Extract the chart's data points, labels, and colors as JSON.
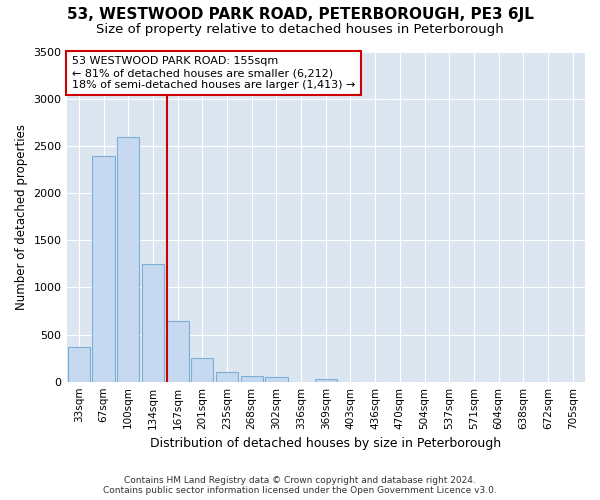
{
  "title_line1": "53, WESTWOOD PARK ROAD, PETERBOROUGH, PE3 6JL",
  "title_line2": "Size of property relative to detached houses in Peterborough",
  "xlabel": "Distribution of detached houses by size in Peterborough",
  "ylabel": "Number of detached properties",
  "bar_labels": [
    "33sqm",
    "67sqm",
    "100sqm",
    "134sqm",
    "167sqm",
    "201sqm",
    "235sqm",
    "268sqm",
    "302sqm",
    "336sqm",
    "369sqm",
    "403sqm",
    "436sqm",
    "470sqm",
    "504sqm",
    "537sqm",
    "571sqm",
    "604sqm",
    "638sqm",
    "672sqm",
    "705sqm"
  ],
  "bar_values": [
    370,
    2390,
    2590,
    1250,
    640,
    255,
    105,
    60,
    45,
    0,
    30,
    0,
    0,
    0,
    0,
    0,
    0,
    0,
    0,
    0,
    0
  ],
  "bar_color": "#c6d9f0",
  "bar_edge_color": "#7bafd4",
  "vline_color": "#cc0000",
  "annotation_text": "53 WESTWOOD PARK ROAD: 155sqm\n← 81% of detached houses are smaller (6,212)\n18% of semi-detached houses are larger (1,413) →",
  "annotation_box_color": "#ffffff",
  "annotation_box_edge": "#cc0000",
  "ylim": [
    0,
    3500
  ],
  "yticks": [
    0,
    500,
    1000,
    1500,
    2000,
    2500,
    3000,
    3500
  ],
  "footer_line1": "Contains HM Land Registry data © Crown copyright and database right 2024.",
  "footer_line2": "Contains public sector information licensed under the Open Government Licence v3.0.",
  "fig_bg_color": "#ffffff",
  "plot_bg_color": "#dce6f1",
  "grid_color": "#ffffff",
  "title1_fontsize": 11,
  "title2_fontsize": 9.5,
  "vline_x_index": 4
}
